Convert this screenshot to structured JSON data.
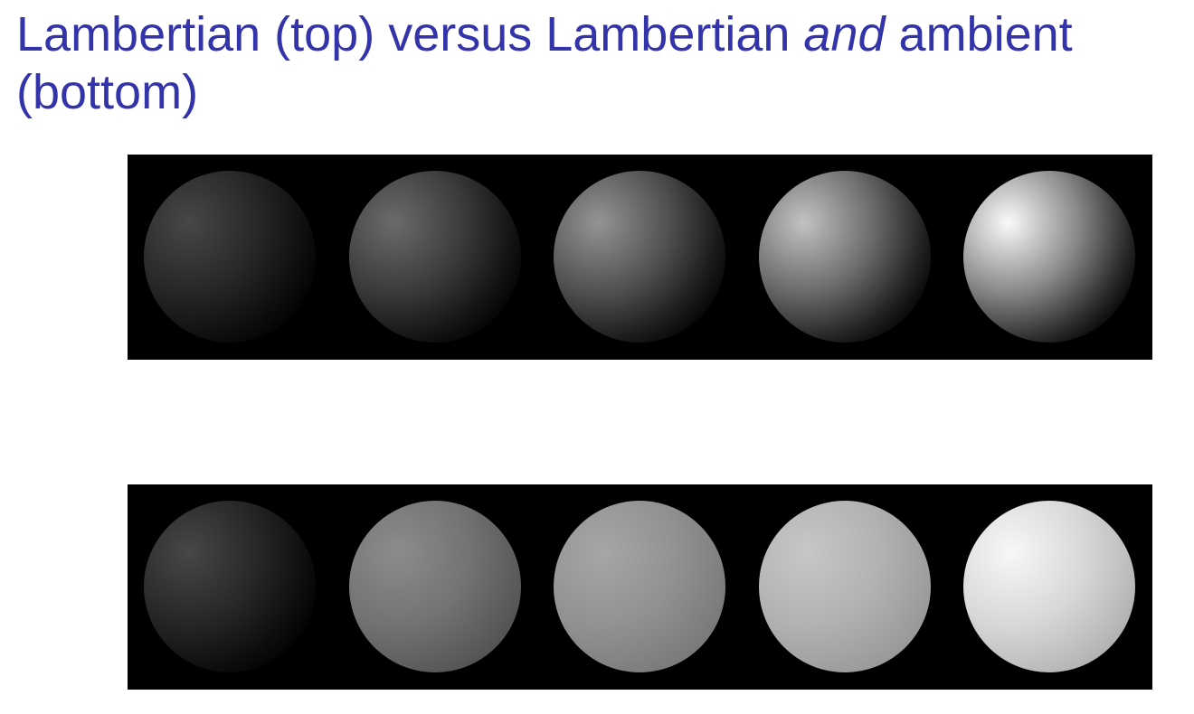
{
  "title": {
    "before": "Lambertian (top) versus Lambertian ",
    "emphasis": "and",
    "after": " ambient (bottom)"
  },
  "colors": {
    "title": "#3333aa",
    "panel_background": "#000000"
  },
  "rows": [
    {
      "id": "top",
      "spheres": [
        {
          "brightness": 0.28,
          "ambient": 0.0
        },
        {
          "brightness": 0.42,
          "ambient": 0.0
        },
        {
          "brightness": 0.58,
          "ambient": 0.0
        },
        {
          "brightness": 0.76,
          "ambient": 0.0
        },
        {
          "brightness": 0.98,
          "ambient": 0.0
        }
      ]
    },
    {
      "id": "bottom",
      "spheres": [
        {
          "brightness": 0.28,
          "ambient": 0.0
        },
        {
          "brightness": 0.55,
          "ambient": 0.33
        },
        {
          "brightness": 0.65,
          "ambient": 0.48
        },
        {
          "brightness": 0.78,
          "ambient": 0.6
        },
        {
          "brightness": 0.97,
          "ambient": 0.7
        }
      ]
    }
  ]
}
